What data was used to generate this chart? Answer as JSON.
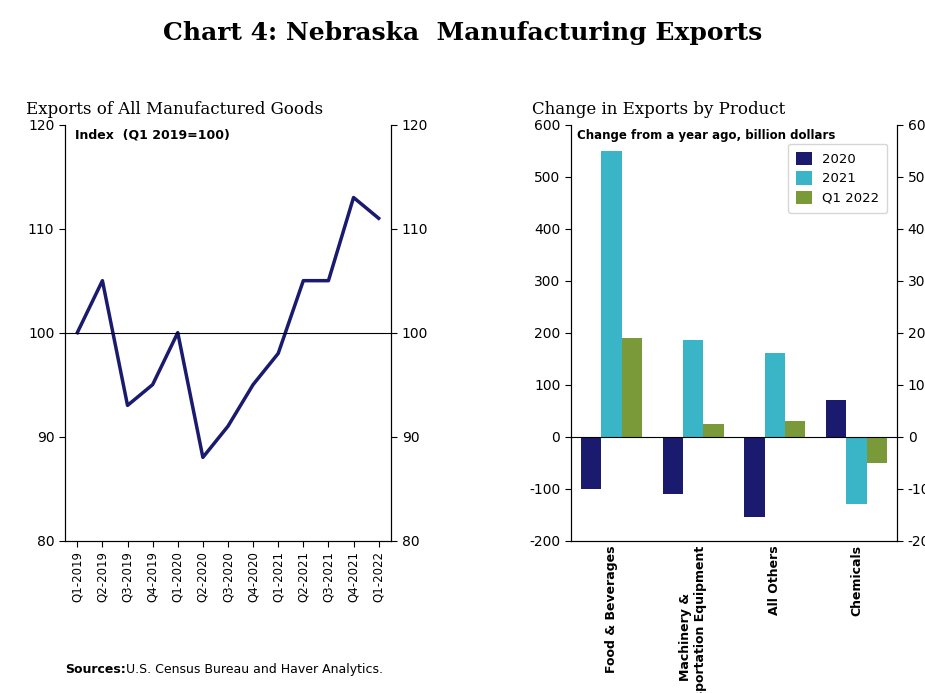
{
  "title": "Chart 4: Nebraska  Manufacturing Exports",
  "left_title": "Exports of All Manufactured Goods",
  "right_title": "Change in Exports by Product",
  "line_labels": [
    "Q1-2019",
    "Q2-2019",
    "Q3-2019",
    "Q4-2019",
    "Q1-2020",
    "Q2-2020",
    "Q3-2020",
    "Q4-2020",
    "Q1-2021",
    "Q2-2021",
    "Q3-2021",
    "Q4-2021",
    "Q1-2022"
  ],
  "line_values": [
    100,
    105,
    93,
    95,
    100,
    88,
    91,
    95,
    98,
    105,
    105,
    113,
    111
  ],
  "line_color": "#1a1a6e",
  "line_ylabel": "Index  (Q1 2019=100)",
  "line_ylim": [
    80,
    120
  ],
  "line_yticks": [
    80,
    90,
    100,
    110,
    120
  ],
  "bar_categories": [
    "Food & Beverages",
    "Machinery &\nTransportation Equipment",
    "All Others",
    "Chemicals"
  ],
  "bar_2020": [
    -100,
    -110,
    -155,
    70
  ],
  "bar_2021": [
    550,
    185,
    160,
    -130
  ],
  "bar_q12022": [
    190,
    25,
    30,
    -50
  ],
  "bar_colors": {
    "2020": "#1a1a6e",
    "2021": "#3ab5c8",
    "q12022": "#7a9a3a"
  },
  "bar_ylabel": "Change from a year ago, billion dollars",
  "bar_ylim": [
    -200,
    600
  ],
  "bar_yticks": [
    -200,
    -100,
    0,
    100,
    200,
    300,
    400,
    500,
    600
  ],
  "legend_labels": [
    "2020",
    "2021",
    "Q1 2022"
  ],
  "sources_bold": "Sources:",
  "sources_rest": " U.S. Census Bureau and Haver Analytics."
}
